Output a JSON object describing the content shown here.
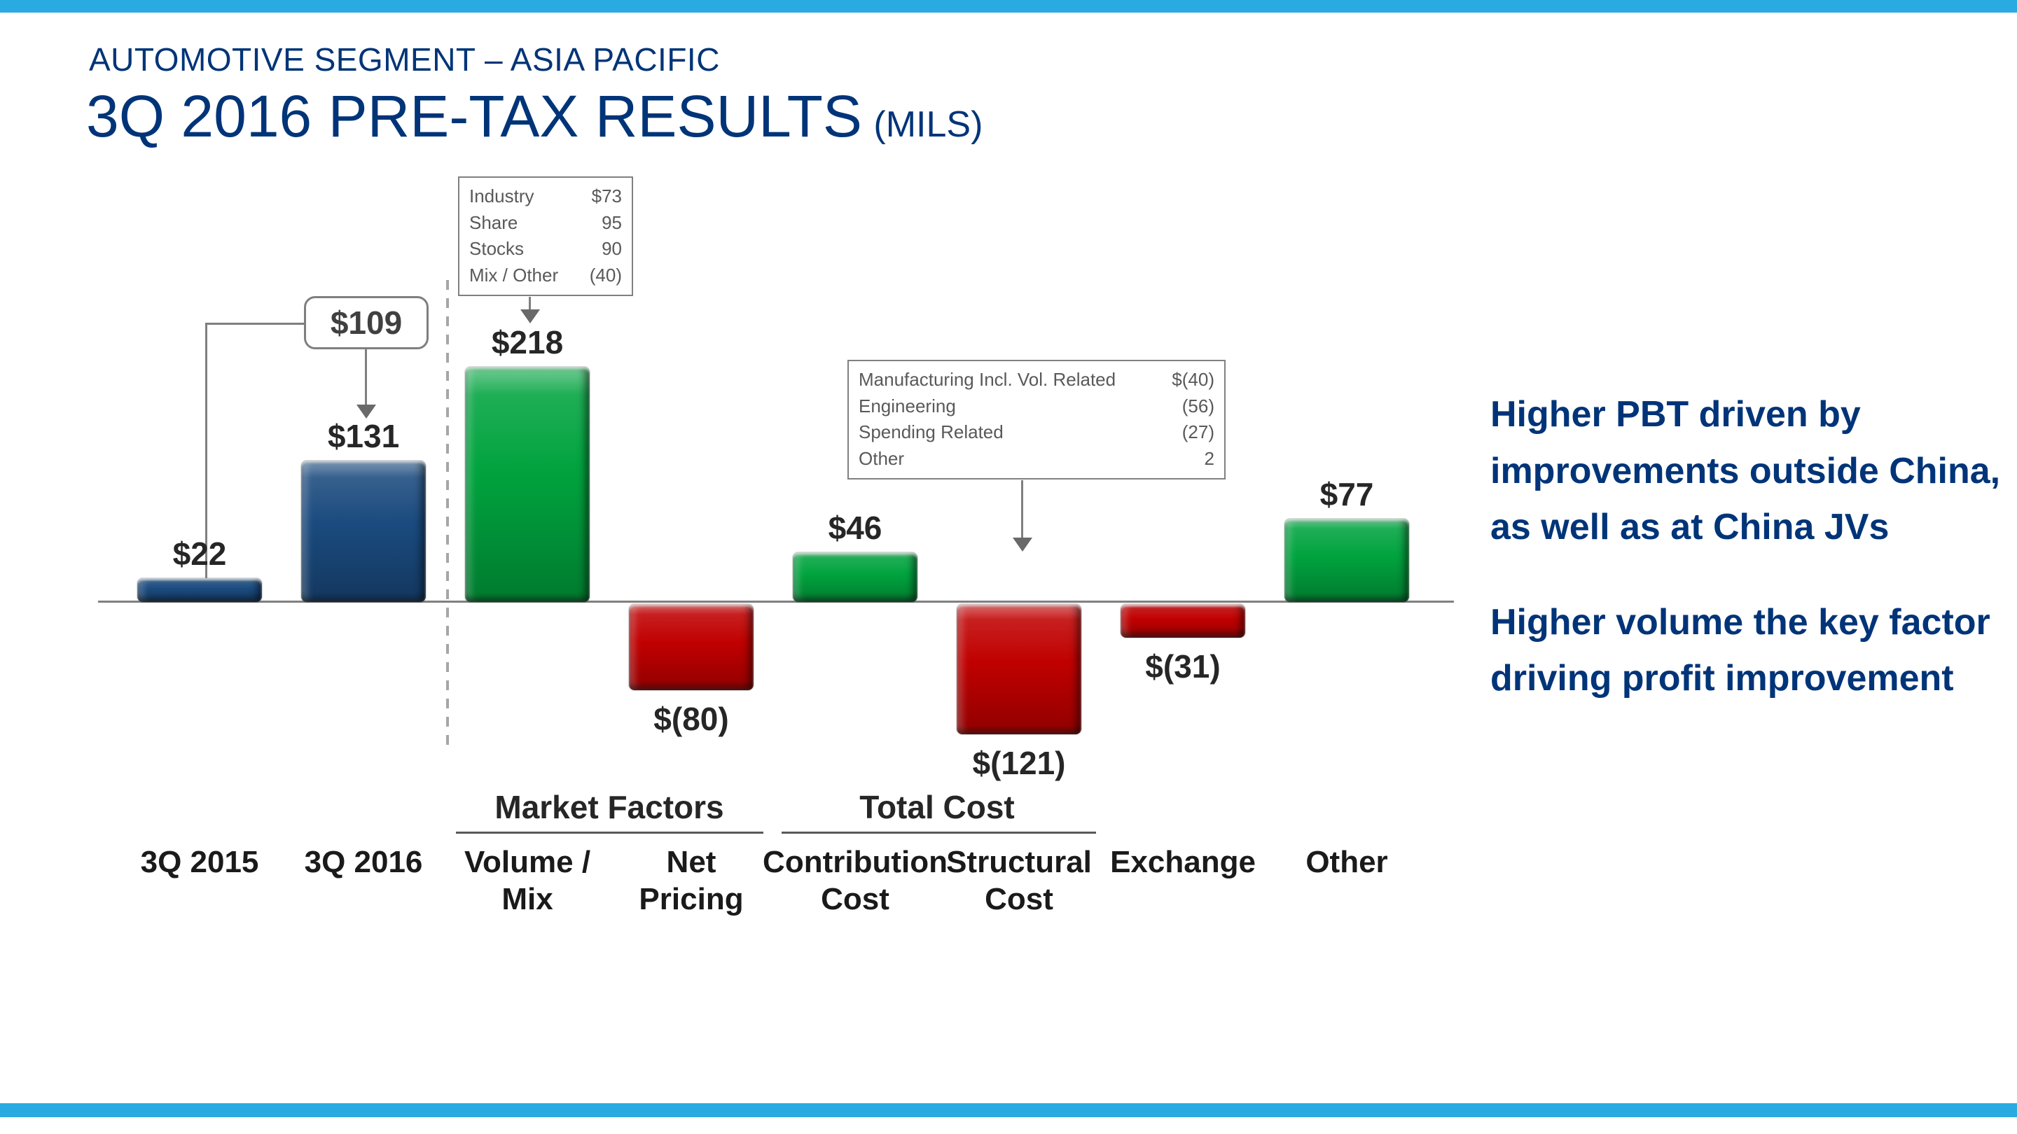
{
  "slide": {
    "kicker": "AUTOMOTIVE SEGMENT – ASIA PACIFIC",
    "title": "3Q 2016 PRE-TAX RESULTS",
    "title_suffix": "(MILS)"
  },
  "colors": {
    "accent": "#29ABE2",
    "title_blue": "#003478",
    "bar_total": "#1A4A7E",
    "bar_increase": "#00A33E",
    "bar_decrease": "#C00000"
  },
  "notes": [
    "Higher PBT driven by improvements outside China, as well as at China JVs",
    "Higher volume the key factor driving profit improvement"
  ],
  "chart_data": {
    "type": "bar",
    "subtype": "waterfall",
    "title": "3Q 2016 Pre-Tax Results (Mils)",
    "unit": "$ millions",
    "series": [
      {
        "name": "3Q 2015",
        "name_lines": [
          "3Q 2015"
        ],
        "value": 22,
        "display": "$22",
        "role": "total"
      },
      {
        "name": "3Q 2016",
        "name_lines": [
          "3Q 2016"
        ],
        "value": 131,
        "display": "$131",
        "role": "total"
      },
      {
        "name": "Volume / Mix",
        "name_lines": [
          "Volume /",
          "Mix"
        ],
        "value": 218,
        "display": "$218",
        "role": "increase"
      },
      {
        "name": "Net Pricing",
        "name_lines": [
          "Net",
          "Pricing"
        ],
        "value": -80,
        "display": "$(80)",
        "role": "decrease"
      },
      {
        "name": "Contribution Cost",
        "name_lines": [
          "Contribution",
          "Cost"
        ],
        "value": 46,
        "display": "$46",
        "role": "increase"
      },
      {
        "name": "Structural Cost",
        "name_lines": [
          "Structural",
          "Cost"
        ],
        "value": -121,
        "display": "$(121)",
        "role": "decrease"
      },
      {
        "name": "Exchange",
        "name_lines": [
          "Exchange"
        ],
        "value": -31,
        "display": "$(31)",
        "role": "decrease"
      },
      {
        "name": "Other",
        "name_lines": [
          "Other"
        ],
        "value": 77,
        "display": "$77",
        "role": "increase"
      }
    ],
    "delta_callout": {
      "label": "$109"
    },
    "groups": [
      {
        "label": "Market Factors",
        "members": [
          "Volume / Mix",
          "Net Pricing"
        ]
      },
      {
        "label": "Total Cost",
        "members": [
          "Contribution Cost",
          "Structural Cost"
        ]
      }
    ],
    "annotations": [
      {
        "target": "Volume / Mix",
        "rows": [
          [
            "Industry",
            "$73"
          ],
          [
            "Share",
            "95"
          ],
          [
            "Stocks",
            "90"
          ],
          [
            "Mix / Other",
            "(40)"
          ]
        ]
      },
      {
        "target": "Structural Cost",
        "rows": [
          [
            "Manufacturing Incl. Vol. Related",
            "$(40)"
          ],
          [
            "Engineering",
            "(56)"
          ],
          [
            "Spending Related",
            "(27)"
          ],
          [
            "Other",
            "2"
          ]
        ]
      }
    ]
  }
}
